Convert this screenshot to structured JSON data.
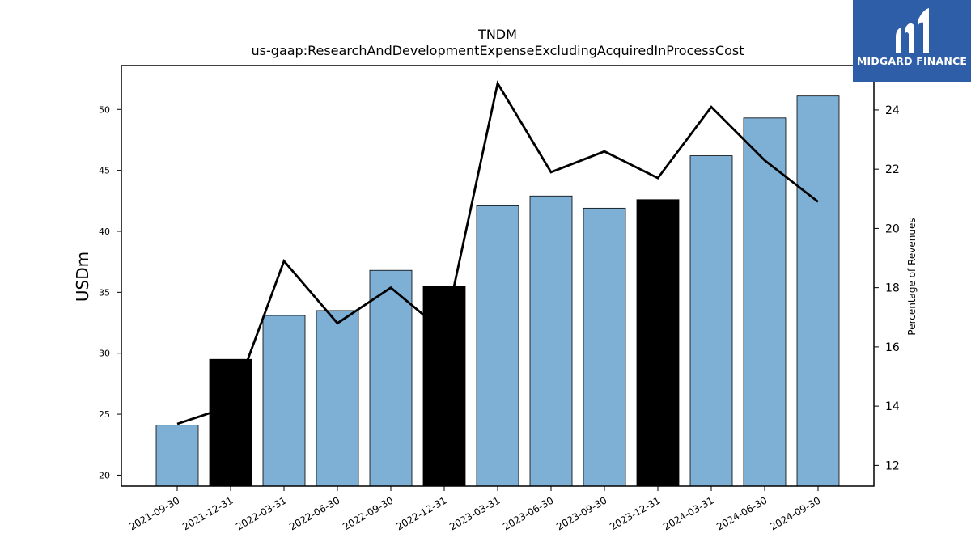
{
  "chart_data": {
    "type": "bar",
    "title": "TNDM",
    "subtitle": "us-gaap:ResearchAndDevelopmentExpenseExcludingAcquiredInProcessCost",
    "xlabel": "",
    "ylabel": "USDm",
    "y2label": "Percentage of Revenues",
    "categories": [
      "2021-09-30",
      "2021-12-31",
      "2022-03-31",
      "2022-06-30",
      "2022-09-30",
      "2022-12-31",
      "2023-03-31",
      "2023-06-30",
      "2023-09-30",
      "2023-12-31",
      "2024-03-31",
      "2024-06-30",
      "2024-09-30"
    ],
    "series": [
      {
        "type": "bar",
        "axis": "left",
        "values": [
          24.1,
          29.5,
          33.1,
          33.5,
          36.8,
          35.5,
          42.1,
          42.9,
          41.9,
          42.6,
          46.2,
          49.3,
          51.1
        ],
        "colors": [
          "#7eb0d5",
          "#000000",
          "#7eb0d5",
          "#7eb0d5",
          "#7eb0d5",
          "#000000",
          "#7eb0d5",
          "#7eb0d5",
          "#7eb0d5",
          "#000000",
          "#7eb0d5",
          "#7eb0d5",
          "#7eb0d5"
        ]
      },
      {
        "type": "line",
        "axis": "right",
        "values": [
          13.4,
          14.0,
          18.9,
          16.8,
          18.0,
          16.5,
          24.9,
          21.9,
          22.6,
          21.7,
          24.1,
          22.3,
          20.9
        ],
        "color": "#000000"
      }
    ],
    "ylim": [
      19.1,
      53.6
    ],
    "yticks": [
      20,
      25,
      30,
      35,
      40,
      45,
      50
    ],
    "y2lim": [
      11.3,
      25.5
    ],
    "y2ticks": [
      12,
      14,
      16,
      18,
      20,
      22,
      24
    ],
    "grid": false,
    "legend": "none"
  },
  "logo": {
    "text": "MIDGARD FINANCE"
  }
}
